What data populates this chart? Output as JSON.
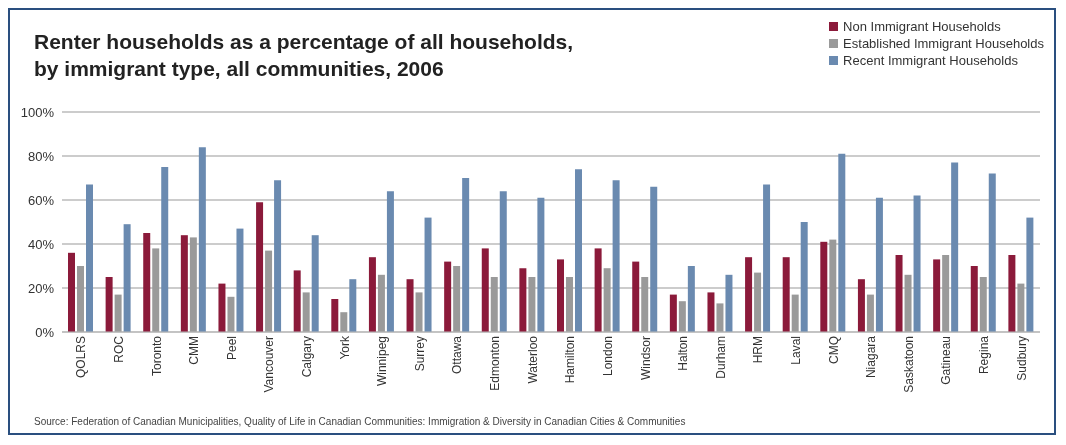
{
  "chart_data": {
    "type": "bar",
    "title": "Renter households as a percentage of all households,\nby immigrant type, all communities, 2006",
    "categories": [
      "QOLRS",
      "ROC",
      "Toronto",
      "CMM",
      "Peel",
      "Vancouver",
      "Calgary",
      "York",
      "Winnipeg",
      "Surrey",
      "Ottawa",
      "Edmonton",
      "Waterloo",
      "Hamilton",
      "London",
      "Windsor",
      "Halton",
      "Durham",
      "HRM",
      "Laval",
      "CMQ",
      "Niagara",
      "Saskatoon",
      "Gatineau",
      "Regina",
      "Sudbury"
    ],
    "series": [
      {
        "name": "Non Immigrant Households",
        "color": "#8b1a3a",
        "values": [
          36,
          25,
          45,
          44,
          22,
          59,
          28,
          15,
          34,
          24,
          32,
          38,
          29,
          33,
          38,
          32,
          17,
          18,
          34,
          34,
          41,
          24,
          35,
          33,
          30,
          35
        ]
      },
      {
        "name": "Established Immigrant Households",
        "color": "#9a9a9a",
        "values": [
          30,
          17,
          38,
          43,
          16,
          37,
          18,
          9,
          26,
          18,
          30,
          25,
          25,
          25,
          29,
          25,
          14,
          13,
          27,
          17,
          42,
          17,
          26,
          35,
          25,
          22
        ]
      },
      {
        "name": "Recent Immigrant Households",
        "color": "#6a8ab0",
        "values": [
          67,
          49,
          75,
          84,
          47,
          69,
          44,
          24,
          64,
          52,
          70,
          64,
          61,
          74,
          69,
          66,
          30,
          26,
          67,
          50,
          81,
          61,
          62,
          77,
          72,
          52
        ]
      }
    ],
    "ylim": [
      0,
      100
    ],
    "yticks": [
      {
        "value": 0,
        "label": "0%"
      },
      {
        "value": 20,
        "label": "20%"
      },
      {
        "value": 40,
        "label": "40%"
      },
      {
        "value": 60,
        "label": "60%"
      },
      {
        "value": 80,
        "label": "80%"
      },
      {
        "value": 100,
        "label": "100%"
      }
    ],
    "grid": "y",
    "legend": "top right",
    "annotations": [
      "Source: Federation of Canadian Municipalities, Quality of Life in Canadian Communities: Immigration & Diversity in Canadian Cities & Communities"
    ]
  }
}
